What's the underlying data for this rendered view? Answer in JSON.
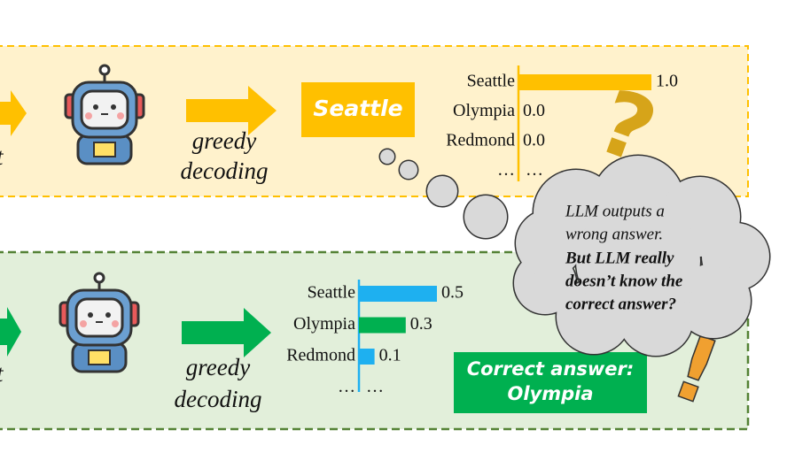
{
  "top": {
    "fragment": "t",
    "step": [
      "greedy",
      "decoding"
    ],
    "output": "Seattle",
    "chart": {
      "type": "bar",
      "categories": [
        "Seattle",
        "Olympia",
        "Redmond",
        "…"
      ],
      "values": [
        1.0,
        0.0,
        0.0,
        null
      ],
      "value_labels": [
        "1.0",
        "0.0",
        "0.0",
        "…"
      ],
      "color": "#ffc000"
    },
    "symbol": "?"
  },
  "bottom": {
    "fragment": "t",
    "step": [
      "greedy",
      "decoding"
    ],
    "chart": {
      "type": "bar",
      "categories": [
        "Seattle",
        "Olympia",
        "Redmond",
        "…"
      ],
      "values": [
        0.5,
        0.3,
        0.1,
        null
      ],
      "value_labels": [
        "0.5",
        "0.3",
        "0.1",
        "…"
      ],
      "color": "#1eb0f0",
      "highlight_index": 1,
      "highlight_color": "#00b050"
    },
    "answer": [
      "Correct answer:",
      "Olympia"
    ],
    "symbol": "!"
  },
  "thought": {
    "note": [
      "LLM outputs a",
      "wrong answer."
    ],
    "question": [
      "But LLM really",
      "doesn’t know the",
      "correct answer?"
    ]
  }
}
